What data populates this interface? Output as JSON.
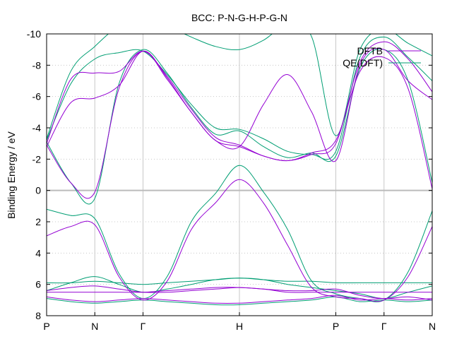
{
  "chart_data": {
    "type": "line",
    "title": "BCC: P-N-G-H-P-G-N",
    "xlabel": "",
    "ylabel": "Binding Energy / eV",
    "ylim": [
      8,
      -10
    ],
    "yticks": [
      "-10",
      "-8",
      "-6",
      "-4",
      "-2",
      "0",
      "2",
      "4",
      "6",
      "8"
    ],
    "ytick_values": [
      -10,
      -8,
      -6,
      -4,
      -2,
      0,
      2,
      4,
      6,
      8
    ],
    "k_labels": [
      "P",
      "N",
      "Γ",
      "H",
      "P",
      "Γ",
      "N"
    ],
    "k_positions": [
      0,
      1,
      2,
      4,
      6,
      7,
      8
    ],
    "grid": true,
    "legend_position": "top-right",
    "colors": {
      "DFTB": "#9400d3",
      "QE(DFT)": "#009e73",
      "fermi": "#bbbbbb",
      "grid": "#c8c8c8"
    },
    "series": [
      {
        "name": "DFTB",
        "x": [
          0,
          0.5,
          1,
          1.5,
          2,
          2.5,
          3,
          3.5,
          4,
          4.5,
          5,
          5.5,
          6,
          6.5,
          7,
          7.5,
          8
        ],
        "bands": [
          [
            6.8,
            7.0,
            7.1,
            7.0,
            6.9,
            7.0,
            7.1,
            7.2,
            7.2,
            7.1,
            7.0,
            6.9,
            6.7,
            7.0,
            6.9,
            7.0,
            6.9
          ],
          [
            6.5,
            6.5,
            6.5,
            6.5,
            6.5,
            6.4,
            6.3,
            6.2,
            6.2,
            6.3,
            6.5,
            6.5,
            6.5,
            6.5,
            6.5,
            6.5,
            6.5
          ],
          [
            6.4,
            6.2,
            6.1,
            6.3,
            6.5,
            6.5,
            6.4,
            6.3,
            6.2,
            6.3,
            6.4,
            6.4,
            6.3,
            6.7,
            6.9,
            6.8,
            7.0
          ],
          [
            2.9,
            2.3,
            2.2,
            5.5,
            7.0,
            5.8,
            2.5,
            0.8,
            -0.7,
            0.8,
            3.5,
            6.2,
            6.8,
            6.9,
            7.0,
            5.5,
            2.3
          ],
          [
            -2.9,
            -0.5,
            0.1,
            -6.5,
            -8.9,
            -7.2,
            -5.0,
            -3.2,
            -2.8,
            -2.2,
            -1.9,
            -2.4,
            -3.2,
            -7.6,
            -8.5,
            -6.5,
            -0.1
          ],
          [
            -2.8,
            -5.6,
            -5.9,
            -6.7,
            -8.9,
            -7.1,
            -5.0,
            -3.2,
            -2.8,
            -5.5,
            -7.4,
            -5.0,
            -1.9,
            -8.0,
            -9.0,
            -7.0,
            -5.8
          ],
          [
            -3.0,
            -7.1,
            -7.5,
            -7.6,
            -8.9,
            -7.3,
            -5.2,
            -3.4,
            -2.9,
            -2.2,
            -1.9,
            -2.3,
            -3.0,
            -8.2,
            -9.5,
            -8.4,
            -6.3
          ]
        ]
      },
      {
        "name": "QE(DFT)",
        "x": [
          0,
          0.5,
          1,
          1.5,
          2,
          2.5,
          3,
          3.5,
          4,
          4.5,
          5,
          5.5,
          6,
          6.5,
          7,
          7.5,
          8
        ],
        "bands": [
          [
            6.9,
            7.1,
            7.2,
            7.1,
            7.0,
            7.1,
            7.2,
            7.3,
            7.3,
            7.2,
            7.1,
            7.0,
            6.8,
            7.1,
            7.0,
            7.1,
            7.0
          ],
          [
            5.9,
            5.9,
            5.8,
            5.9,
            6.0,
            5.9,
            5.8,
            5.7,
            5.6,
            5.7,
            5.8,
            5.8,
            5.9,
            5.9,
            5.9,
            5.9,
            5.9
          ],
          [
            6.4,
            5.9,
            5.5,
            6.0,
            6.5,
            6.3,
            6.0,
            5.7,
            5.6,
            5.7,
            6.0,
            6.2,
            6.4,
            6.6,
            6.9,
            6.5,
            6.1
          ],
          [
            1.2,
            1.6,
            1.8,
            5.3,
            6.9,
            5.5,
            2.0,
            0.2,
            -1.6,
            0.1,
            2.5,
            5.8,
            6.6,
            6.9,
            7.0,
            5.2,
            1.3
          ],
          [
            -3.1,
            -0.5,
            0.5,
            -6.8,
            -9.0,
            -7.5,
            -5.3,
            -3.6,
            -3.8,
            -2.8,
            -2.1,
            -2.4,
            -2.2,
            -7.8,
            -9.0,
            -7.0,
            -0.5
          ],
          [
            -3.2,
            -6.8,
            -8.4,
            -8.8,
            -8.9,
            -7.4,
            -5.5,
            -4.0,
            -3.9,
            -3.3,
            -2.5,
            -2.3,
            -2.5,
            -8.5,
            -9.8,
            -8.5,
            -7.0
          ],
          [
            -3.3,
            -7.6,
            -9.2,
            -10.5,
            -11.0,
            -10.5,
            -9.8,
            -9.2,
            -9.0,
            -9.6,
            -10.6,
            -9.8,
            -3.5,
            -9.0,
            -10.3,
            -9.4,
            -8.6
          ]
        ]
      }
    ]
  }
}
